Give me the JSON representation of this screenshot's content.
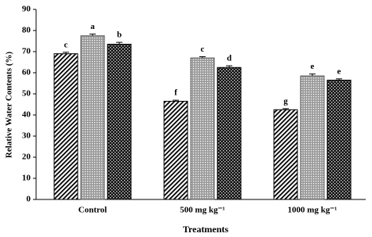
{
  "chart_data": {
    "type": "bar",
    "x_label": "Treatments",
    "y_label": "Relative Water Contents (%)",
    "categories": [
      "Control",
      "500 mg kg⁻¹",
      "1000 mg kg⁻¹"
    ],
    "series": [
      {
        "pattern": "diagonal",
        "color": "#000000",
        "values": [
          69,
          46.5,
          42.5
        ],
        "errors": [
          0.7,
          0.5,
          0.5
        ],
        "letters": [
          "c",
          "f",
          "g"
        ]
      },
      {
        "pattern": "dots",
        "color": "#555555",
        "values": [
          77.5,
          67,
          58.5
        ],
        "errors": [
          0.8,
          0.6,
          0.9
        ],
        "letters": [
          "a",
          "c",
          "e"
        ]
      },
      {
        "pattern": "checker",
        "color": "#000000",
        "values": [
          73.5,
          62.5,
          56.5
        ],
        "errors": [
          0.9,
          0.8,
          0.6
        ],
        "letters": [
          "b",
          "d",
          "e"
        ]
      }
    ],
    "ylim": [
      0,
      90
    ],
    "yticks": [
      0,
      10,
      20,
      30,
      40,
      50,
      60,
      70,
      80,
      90
    ],
    "grid": false
  }
}
